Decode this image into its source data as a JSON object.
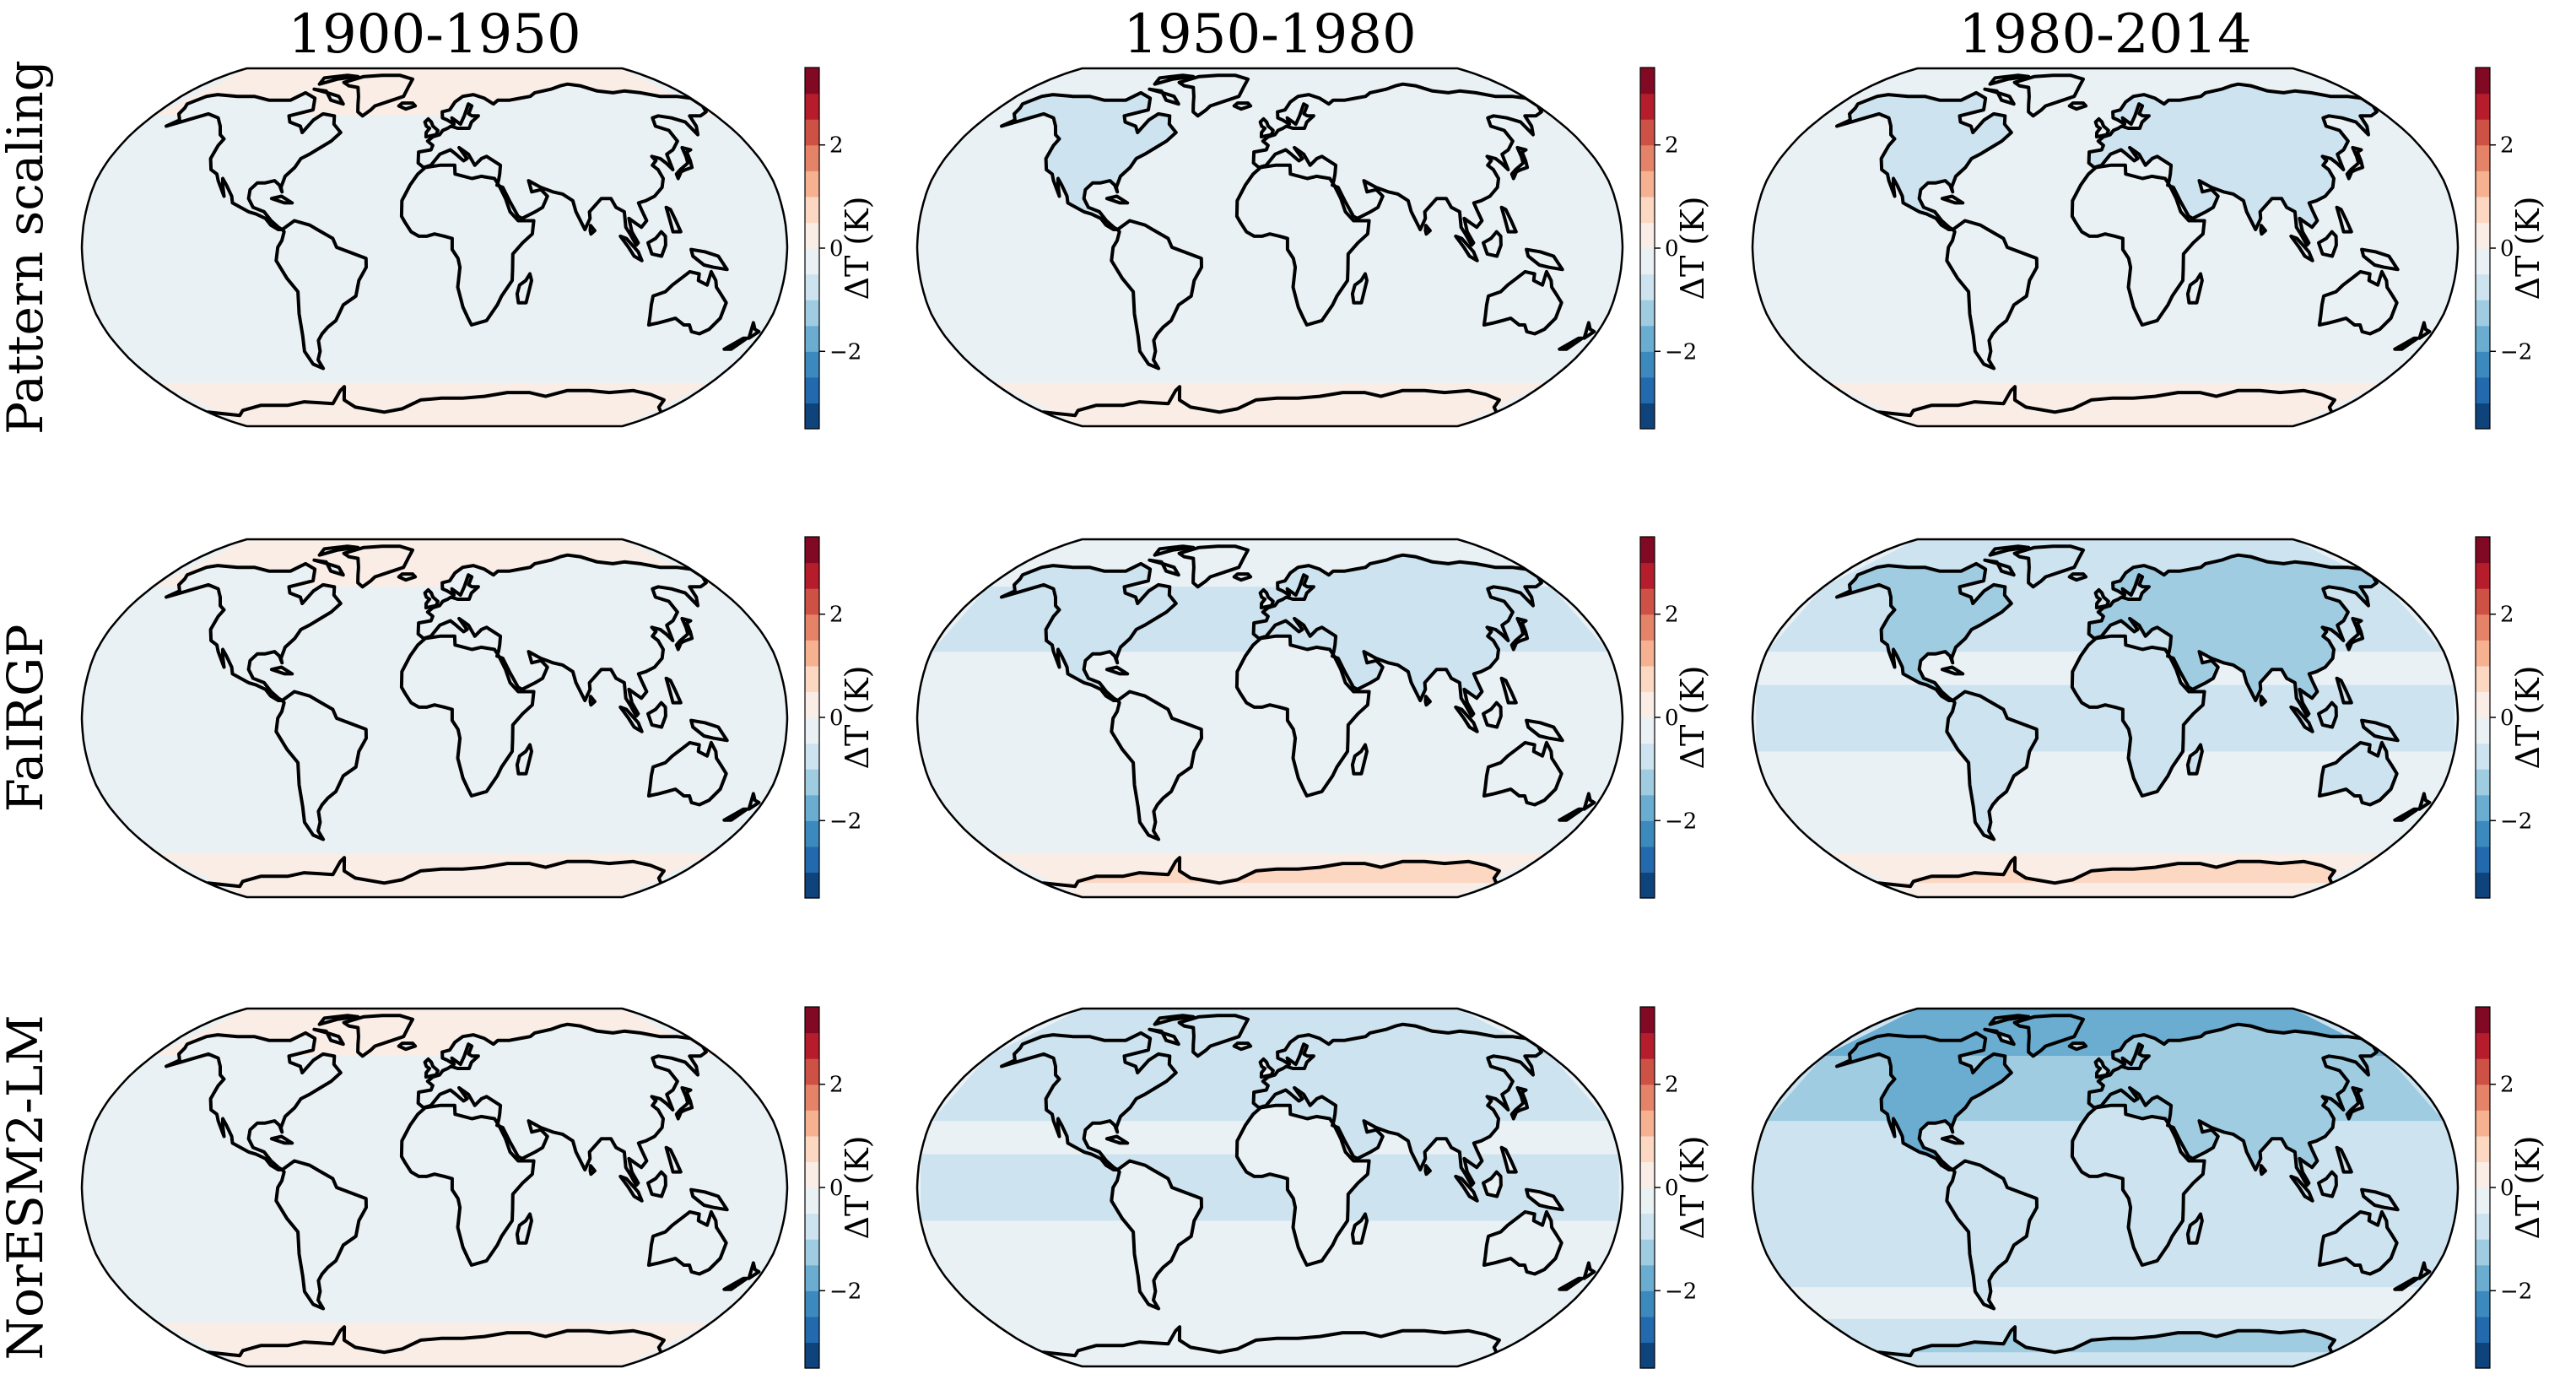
{
  "chart_data": {
    "type": "heatmap",
    "projection": "robinson",
    "columns": [
      "1900-1950",
      "1950-1980",
      "1980-2014"
    ],
    "rows": [
      "Pattern scaling",
      "FaIRGP",
      "NorESM2-LM"
    ],
    "colorbar": {
      "label": "ΔT (K)",
      "range": [
        -3.5,
        3.5
      ],
      "ticks": [
        2,
        0,
        -2
      ],
      "tick_labels": [
        "2",
        "0",
        "−2"
      ],
      "colormap": "RdBu_r",
      "levels": 14
    },
    "panels": [
      {
        "row": "Pattern scaling",
        "period": "1900-1950",
        "background_dT": -0.12,
        "land_dT": -0.3,
        "north_dT": -0.3,
        "arctic_dT": 0.25,
        "antarctic_dT": 0.35
      },
      {
        "row": "Pattern scaling",
        "period": "1950-1980",
        "background_dT": -0.15,
        "land_dT": -0.4,
        "north_dT": -0.55,
        "arctic_dT": -0.2,
        "antarctic_dT": 0.35
      },
      {
        "row": "Pattern scaling",
        "period": "1980-2014",
        "background_dT": -0.2,
        "land_dT": -0.55,
        "north_dT": -0.7,
        "arctic_dT": -0.3,
        "antarctic_dT": 0.4
      },
      {
        "row": "FaIRGP",
        "period": "1900-1950",
        "background_dT": -0.08,
        "land_dT": -0.2,
        "north_dT": -0.2,
        "arctic_dT": 0.2,
        "antarctic_dT": 0.4
      },
      {
        "row": "FaIRGP",
        "period": "1950-1980",
        "background_dT": -0.3,
        "land_dT": -0.6,
        "north_dT": -0.9,
        "arctic_dT": -0.5,
        "antarctic_dT": 0.5
      },
      {
        "row": "FaIRGP",
        "period": "1980-2014",
        "background_dT": -0.45,
        "land_dT": -0.9,
        "north_dT": -1.3,
        "arctic_dT": -0.8,
        "antarctic_dT": 0.55
      },
      {
        "row": "NorESM2-LM",
        "period": "1900-1950",
        "background_dT": -0.15,
        "land_dT": -0.3,
        "north_dT": -0.3,
        "arctic_dT": 0.3,
        "antarctic_dT": 0.3
      },
      {
        "row": "NorESM2-LM",
        "period": "1950-1980",
        "background_dT": -0.35,
        "land_dT": -0.7,
        "north_dT": -0.9,
        "arctic_dT": -0.6,
        "antarctic_dT": -0.1
      },
      {
        "row": "NorESM2-LM",
        "period": "1980-2014",
        "background_dT": -0.55,
        "land_dT": -1.1,
        "north_dT": -1.6,
        "arctic_dT": -1.8,
        "antarctic_dT": -1.5
      }
    ],
    "colors": {
      "coast": "#000000",
      "frame": "#000000",
      "colormap": [
        "#053061",
        "#2166ac",
        "#4393c3",
        "#92c5de",
        "#d1e5f0",
        "#f7f7f7",
        "#fddbc7",
        "#f4a582",
        "#d6604d",
        "#b2182b",
        "#67001f"
      ]
    }
  }
}
